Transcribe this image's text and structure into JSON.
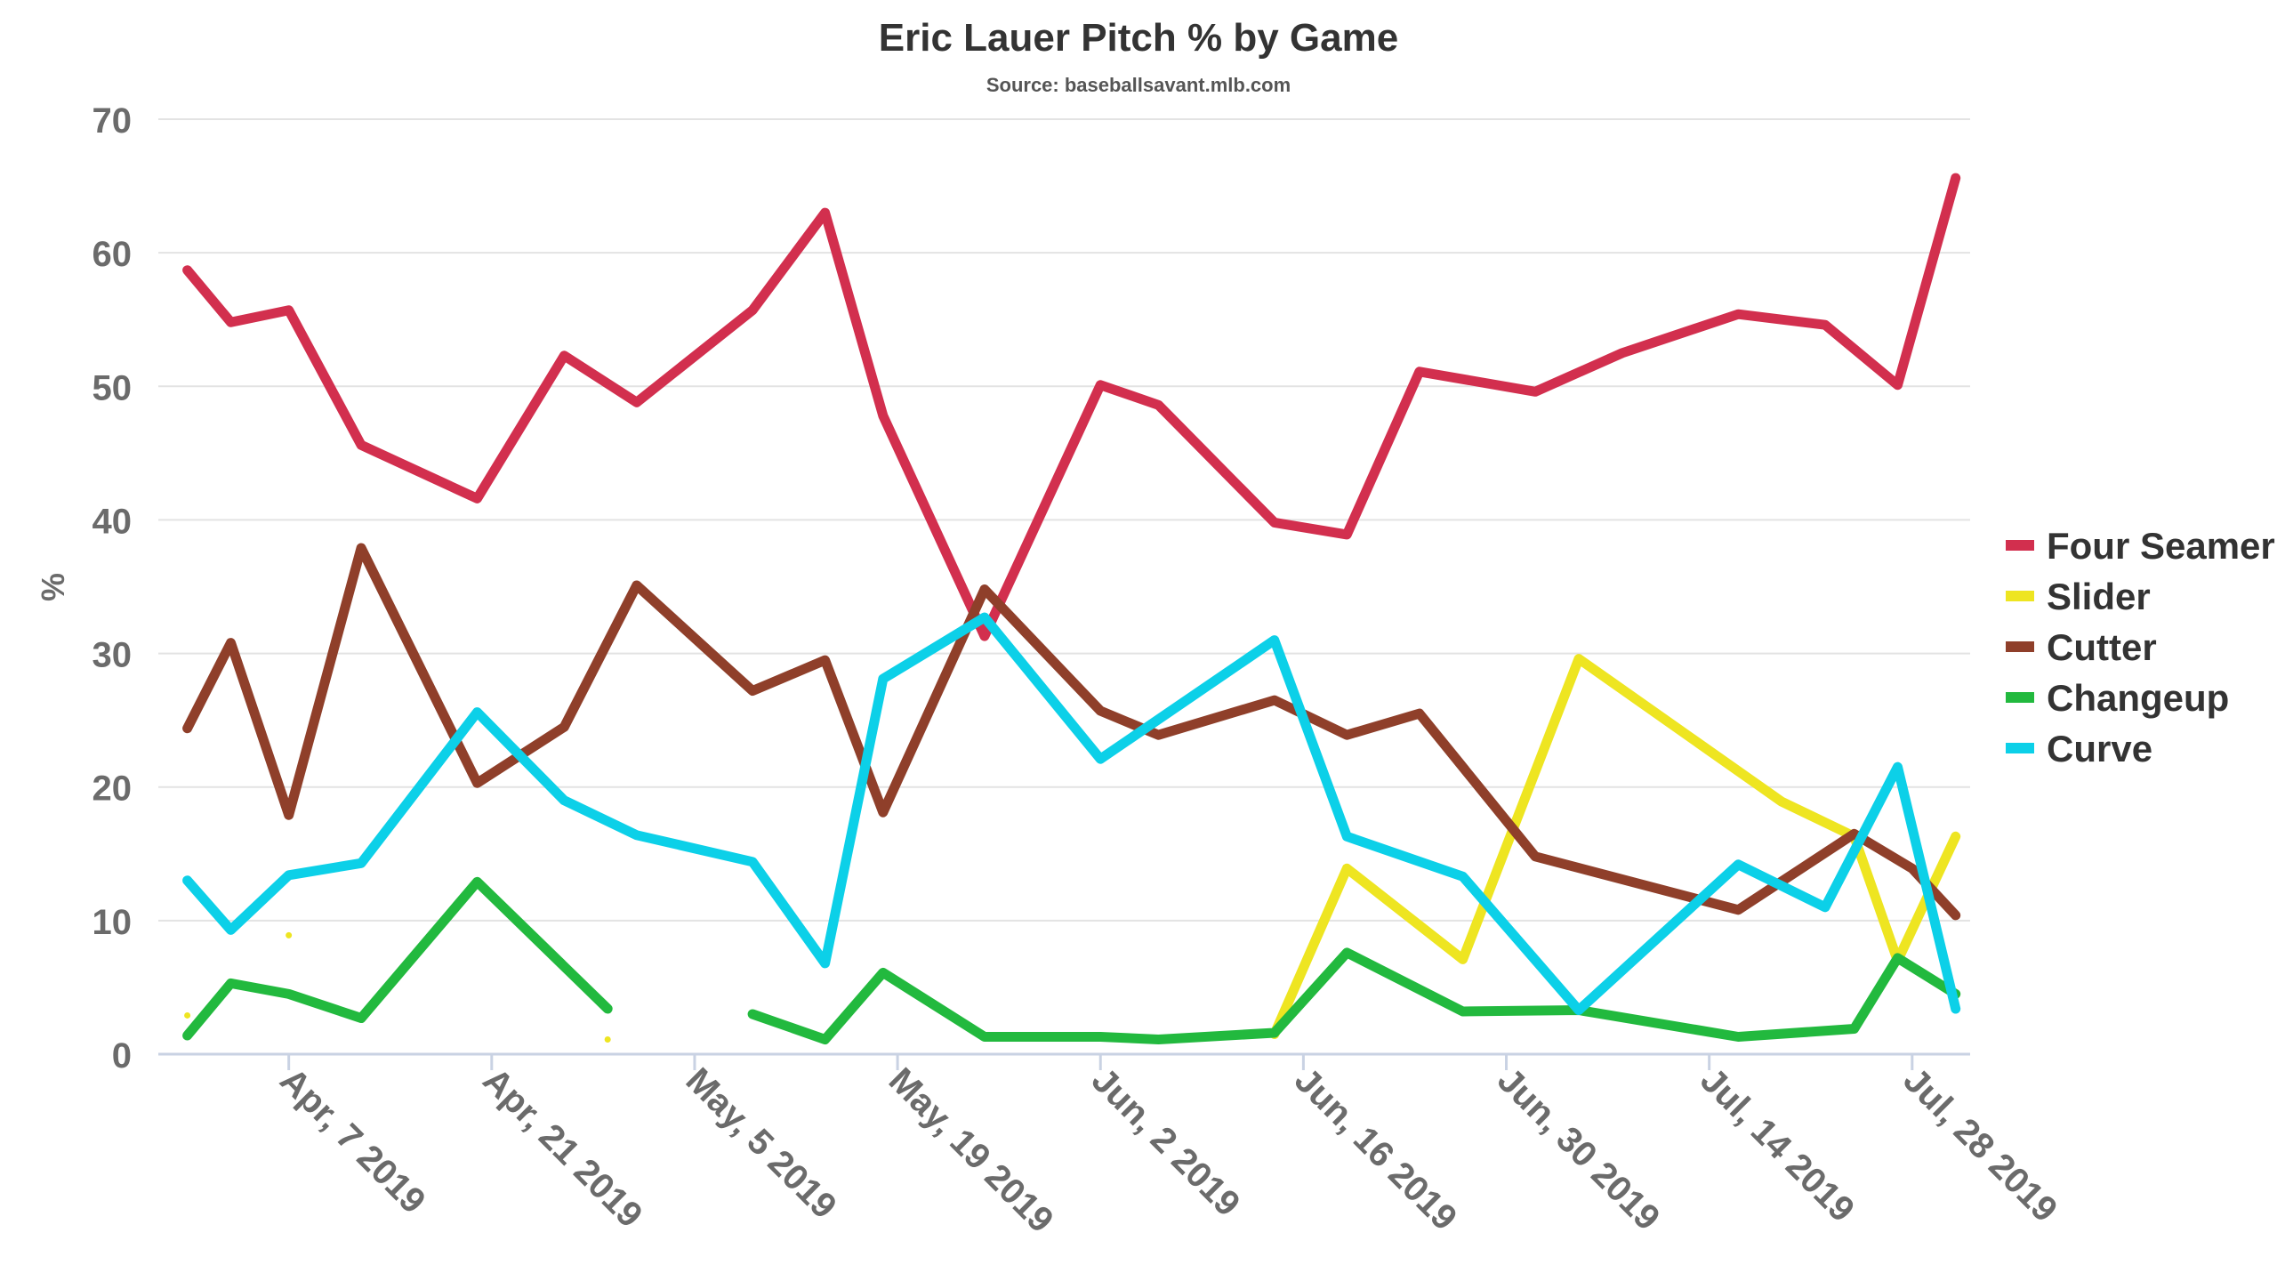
{
  "chart_data": {
    "type": "line",
    "title": "Eric Lauer Pitch % by Game",
    "subtitle": "Source: baseballsavant.mlb.com",
    "ylabel": "%",
    "xlabel": "",
    "ylim": [
      0,
      70
    ],
    "yticks": [
      0,
      10,
      20,
      30,
      40,
      50,
      60,
      70
    ],
    "xlim": [
      "2019-03-29",
      "2019-08-01"
    ],
    "xtick_dates": [
      "2019-04-07",
      "2019-04-21",
      "2019-05-05",
      "2019-05-19",
      "2019-06-02",
      "2019-06-16",
      "2019-06-30",
      "2019-07-14",
      "2019-07-28"
    ],
    "xtick_labels": [
      "Apr, 7 2019",
      "Apr, 21 2019",
      "May, 5 2019",
      "May, 19 2019",
      "Jun, 2 2019",
      "Jun, 16 2019",
      "Jun, 30 2019",
      "Jul, 14 2019",
      "Jul, 28 2019"
    ],
    "grid": true,
    "legend_position": "right",
    "series": [
      {
        "name": "Four Seamer",
        "color": "#d22f4e",
        "points": [
          [
            "2019-03-31",
            58.7
          ],
          [
            "2019-04-03",
            54.8
          ],
          [
            "2019-04-07",
            55.7
          ],
          [
            "2019-04-12",
            45.6
          ],
          [
            "2019-04-20",
            41.6
          ],
          [
            "2019-04-26",
            52.3
          ],
          [
            "2019-05-01",
            48.8
          ],
          [
            "2019-05-09",
            55.7
          ],
          [
            "2019-05-14",
            63.0
          ],
          [
            "2019-05-18",
            47.8
          ],
          [
            "2019-05-25",
            31.3
          ],
          [
            "2019-06-02",
            50.1
          ],
          [
            "2019-06-06",
            48.6
          ],
          [
            "2019-06-14",
            39.8
          ],
          [
            "2019-06-19",
            38.9
          ],
          [
            "2019-06-24",
            51.1
          ],
          [
            "2019-07-02",
            49.6
          ],
          [
            "2019-07-08",
            52.5
          ],
          [
            "2019-07-16",
            55.4
          ],
          [
            "2019-07-22",
            54.6
          ],
          [
            "2019-07-27",
            50.1
          ],
          [
            "2019-07-31",
            65.6
          ]
        ]
      },
      {
        "name": "Slider",
        "color": "#eee521",
        "points": [
          [
            "2019-06-14",
            1.5
          ],
          [
            "2019-06-19",
            13.9
          ],
          [
            "2019-06-27",
            7.1
          ],
          [
            "2019-07-05",
            29.6
          ],
          [
            "2019-07-19",
            18.9
          ],
          [
            "2019-07-24",
            16.3
          ],
          [
            "2019-07-27",
            7.0
          ],
          [
            "2019-07-31",
            16.3
          ]
        ],
        "isolated_points": [
          [
            "2019-03-31",
            2.9
          ],
          [
            "2019-04-07",
            8.9
          ],
          [
            "2019-04-29",
            1.1
          ]
        ]
      },
      {
        "name": "Cutter",
        "color": "#8f3f2a",
        "points": [
          [
            "2019-03-31",
            24.4
          ],
          [
            "2019-04-03",
            30.8
          ],
          [
            "2019-04-07",
            17.9
          ],
          [
            "2019-04-12",
            37.9
          ],
          [
            "2019-04-20",
            20.3
          ],
          [
            "2019-04-26",
            24.5
          ],
          [
            "2019-05-01",
            35.1
          ],
          [
            "2019-05-09",
            27.2
          ],
          [
            "2019-05-14",
            29.5
          ],
          [
            "2019-05-18",
            18.1
          ],
          [
            "2019-05-25",
            34.8
          ],
          [
            "2019-06-02",
            25.7
          ],
          [
            "2019-06-06",
            23.9
          ],
          [
            "2019-06-14",
            26.5
          ],
          [
            "2019-06-19",
            23.9
          ],
          [
            "2019-06-24",
            25.5
          ],
          [
            "2019-07-02",
            14.8
          ],
          [
            "2019-07-16",
            10.8
          ],
          [
            "2019-07-24",
            16.5
          ],
          [
            "2019-07-28",
            13.9
          ],
          [
            "2019-07-31",
            10.4
          ]
        ]
      },
      {
        "name": "Changeup",
        "color": "#22b93e",
        "segments": [
          [
            [
              "2019-03-31",
              1.4
            ],
            [
              "2019-04-03",
              5.3
            ],
            [
              "2019-04-07",
              4.5
            ],
            [
              "2019-04-12",
              2.7
            ],
            [
              "2019-04-20",
              12.9
            ],
            [
              "2019-04-29",
              3.4
            ]
          ],
          [
            [
              "2019-05-09",
              3.0
            ],
            [
              "2019-05-14",
              1.1
            ],
            [
              "2019-05-18",
              6.1
            ],
            [
              "2019-05-25",
              1.3
            ],
            [
              "2019-06-02",
              1.3
            ],
            [
              "2019-06-06",
              1.1
            ],
            [
              "2019-06-14",
              1.6
            ],
            [
              "2019-06-19",
              7.6
            ],
            [
              "2019-06-27",
              3.2
            ],
            [
              "2019-07-05",
              3.3
            ],
            [
              "2019-07-16",
              1.3
            ],
            [
              "2019-07-24",
              1.9
            ],
            [
              "2019-07-27",
              7.2
            ],
            [
              "2019-07-31",
              4.5
            ]
          ]
        ]
      },
      {
        "name": "Curve",
        "color": "#0cd0e8",
        "points": [
          [
            "2019-03-31",
            13.0
          ],
          [
            "2019-04-03",
            9.3
          ],
          [
            "2019-04-07",
            13.4
          ],
          [
            "2019-04-12",
            14.3
          ],
          [
            "2019-04-20",
            25.6
          ],
          [
            "2019-04-26",
            19.0
          ],
          [
            "2019-05-01",
            16.4
          ],
          [
            "2019-05-09",
            14.4
          ],
          [
            "2019-05-14",
            6.8
          ],
          [
            "2019-05-18",
            28.1
          ],
          [
            "2019-05-25",
            32.7
          ],
          [
            "2019-06-02",
            22.1
          ],
          [
            "2019-06-14",
            31.0
          ],
          [
            "2019-06-19",
            16.3
          ],
          [
            "2019-06-27",
            13.3
          ],
          [
            "2019-07-05",
            3.3
          ],
          [
            "2019-07-16",
            14.2
          ],
          [
            "2019-07-22",
            11.0
          ],
          [
            "2019-07-27",
            21.5
          ],
          [
            "2019-07-31",
            3.4
          ]
        ]
      }
    ]
  }
}
